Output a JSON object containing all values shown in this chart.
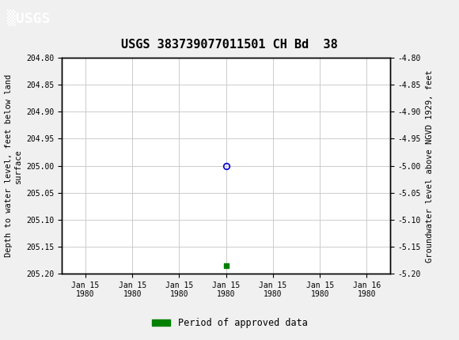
{
  "title": "USGS 383739077011501 CH Bd  38",
  "ylabel_left": "Depth to water level, feet below land\nsurface",
  "ylabel_right": "Groundwater level above NGVD 1929, feet",
  "ylim_left": [
    204.8,
    205.2
  ],
  "ylim_right": [
    -4.8,
    -5.2
  ],
  "y_ticks_left": [
    204.8,
    204.85,
    204.9,
    204.95,
    205.0,
    205.05,
    205.1,
    205.15,
    205.2
  ],
  "y_ticks_right": [
    -4.8,
    -4.85,
    -4.9,
    -4.95,
    -5.0,
    -5.05,
    -5.1,
    -5.15,
    -5.2
  ],
  "x_tick_labels": [
    "Jan 15\n1980",
    "Jan 15\n1980",
    "Jan 15\n1980",
    "Jan 15\n1980",
    "Jan 15\n1980",
    "Jan 15\n1980",
    "Jan 16\n1980"
  ],
  "data_point_x": 3,
  "data_point_y": 205.0,
  "data_point_color": "#0000cc",
  "green_square_x": 3,
  "green_square_y": 205.185,
  "green_square_color": "#008000",
  "header_color": "#1b6b3a",
  "header_text": "▒USGS",
  "legend_label": "Period of approved data",
  "legend_color": "#008000",
  "background_color": "#f0f0f0",
  "plot_bg_color": "#ffffff",
  "grid_color": "#cccccc",
  "font_color": "#000000",
  "x_ticks": [
    0,
    1,
    2,
    3,
    4,
    5,
    6
  ],
  "title_fontsize": 11,
  "tick_fontsize": 7,
  "label_fontsize": 7.5,
  "header_fontsize": 13
}
